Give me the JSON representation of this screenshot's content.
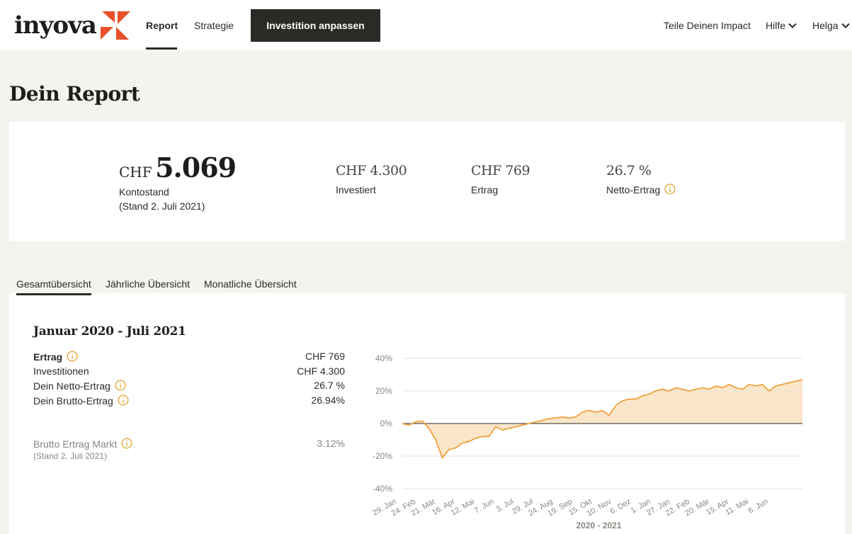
{
  "header": {
    "logo_text": "inyova",
    "nav": {
      "report": "Report",
      "strategie": "Strategie"
    },
    "cta_label": "Investition anpassen",
    "impact": "Teile Deinen Impact",
    "hilfe": "Hilfe",
    "user": "Helga"
  },
  "page_title": "Dein Report",
  "summary": {
    "balance_currency": "CHF",
    "balance_value": "5.069",
    "balance_label": "Kontostand",
    "balance_date": "(Stand 2. Juli 2021)",
    "invested_value": "CHF 4.300",
    "invested_label": "Investiert",
    "return_value": "CHF 769",
    "return_label": "Ertrag",
    "net_value": "26.7 %",
    "net_label": "Netto-Ertrag"
  },
  "tabs": [
    "Gesamtübersicht",
    "Jährliche Übersicht",
    "Monatliche Übersicht"
  ],
  "detail": {
    "title": "Januar 2020 - Juli 2021",
    "rows": [
      {
        "label": "Ertrag",
        "value": "CHF 769"
      },
      {
        "label": "Investitionen",
        "value": "CHF 4.300"
      },
      {
        "label": "Dein Netto-Ertrag",
        "value": "26.7 %"
      },
      {
        "label": "Dein Brutto-Ertrag",
        "value": "26.94%"
      }
    ],
    "market_label": "Brutto Ertrag Markt",
    "market_value": "3.12%",
    "market_date": "(Stand 2. Juli 2021)"
  },
  "colors": {
    "accent": "#f0a03c",
    "fill": "#fbe2bf",
    "brand_orange": "#e8512b",
    "dark": "#2c2a26"
  },
  "chart_data": {
    "type": "area",
    "xlabel": "2020 - 2021",
    "ylabel": "",
    "ylim": [
      -40,
      40
    ],
    "yticks": [
      "40%",
      "20%",
      "0%",
      "-20%",
      "-40%"
    ],
    "x_ticks": [
      "29. Jan",
      "24. Feb",
      "21. Mär",
      "16. Apr",
      "12. Mai",
      "7. Jun",
      "3. Jul",
      "29. Jul",
      "24. Aug",
      "19. Sep",
      "15. Okt",
      "10. Nov",
      "6. Dez",
      "1. Jan",
      "27. Jan",
      "22. Feb",
      "20. Mär",
      "15. Apr",
      "11. Mai",
      "6. Jun"
    ],
    "series": [
      {
        "values": [
          0,
          -1,
          1,
          1.5,
          -3,
          -10,
          -21,
          -16,
          -15,
          -12,
          -11,
          -9,
          -8,
          -8,
          -2,
          -4,
          -3,
          -2,
          -1,
          0,
          1,
          2,
          3,
          3.5,
          4,
          3.5,
          4,
          7,
          8,
          7,
          8,
          5,
          11,
          14,
          15,
          15,
          17,
          18,
          20,
          21,
          20,
          22,
          21,
          20,
          21,
          22,
          21,
          23,
          22,
          24,
          22,
          21,
          24,
          23,
          24,
          20,
          23,
          24,
          25,
          26,
          27
        ]
      }
    ]
  }
}
